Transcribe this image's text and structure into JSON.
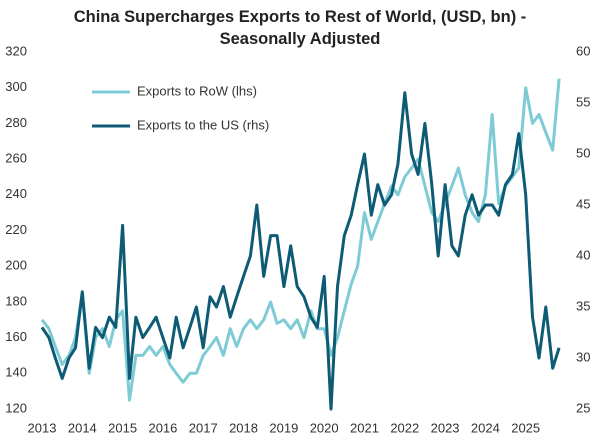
{
  "chart_data": {
    "type": "line",
    "title": "China Supercharges Exports to Rest of World, (USD, bn) - Seasonally Adjusted",
    "x": [
      2013.0,
      2013.17,
      2013.33,
      2013.5,
      2013.67,
      2013.83,
      2014.0,
      2014.17,
      2014.33,
      2014.5,
      2014.67,
      2014.83,
      2015.0,
      2015.17,
      2015.33,
      2015.5,
      2015.67,
      2015.83,
      2016.0,
      2016.17,
      2016.33,
      2016.5,
      2016.67,
      2016.83,
      2017.0,
      2017.17,
      2017.33,
      2017.5,
      2017.67,
      2017.83,
      2018.0,
      2018.17,
      2018.33,
      2018.5,
      2018.67,
      2018.83,
      2019.0,
      2019.17,
      2019.33,
      2019.5,
      2019.67,
      2019.83,
      2020.0,
      2020.17,
      2020.33,
      2020.5,
      2020.67,
      2020.83,
      2021.0,
      2021.17,
      2021.33,
      2021.5,
      2021.67,
      2021.83,
      2022.0,
      2022.17,
      2022.33,
      2022.5,
      2022.67,
      2022.83,
      2023.0,
      2023.17,
      2023.33,
      2023.5,
      2023.67,
      2023.83,
      2024.0,
      2024.17,
      2024.33,
      2024.5,
      2024.67,
      2024.83,
      2025.0,
      2025.17,
      2025.33,
      2025.5,
      2025.67,
      2025.83
    ],
    "series": [
      {
        "name": "Exports to RoW (lhs)",
        "color": "#7ecbd6",
        "axis": "y",
        "values": [
          170,
          165,
          155,
          145,
          150,
          160,
          185,
          140,
          160,
          165,
          155,
          170,
          175,
          125,
          150,
          150,
          155,
          150,
          155,
          145,
          140,
          135,
          140,
          140,
          150,
          155,
          160,
          150,
          165,
          155,
          165,
          170,
          165,
          170,
          180,
          168,
          170,
          165,
          170,
          160,
          175,
          165,
          165,
          150,
          160,
          175,
          190,
          200,
          230,
          215,
          225,
          235,
          245,
          240,
          250,
          255,
          260,
          245,
          230,
          225,
          235,
          245,
          255,
          240,
          230,
          225,
          240,
          285,
          235,
          245,
          250,
          255,
          300,
          280,
          285,
          275,
          265,
          305
        ]
      },
      {
        "name": "Exports to the US (rhs)",
        "color": "#0e5b75",
        "axis": "y2",
        "values": [
          33,
          32,
          30,
          28,
          30,
          31,
          36.5,
          29,
          33,
          32,
          34,
          33,
          43,
          28,
          34,
          32,
          33,
          34,
          32,
          30,
          34,
          31,
          33,
          35,
          31,
          36,
          35,
          37,
          34,
          36,
          38,
          40,
          45,
          38,
          42,
          42,
          37,
          41,
          37,
          36,
          34,
          33,
          38,
          25,
          37,
          42,
          44,
          47,
          50,
          44,
          47,
          45,
          46,
          49,
          56,
          50,
          48,
          53,
          47,
          40,
          47,
          41,
          40,
          44,
          46,
          44,
          45,
          45,
          44,
          47,
          48,
          52,
          46,
          34,
          30,
          35,
          29,
          31
        ]
      }
    ],
    "xlim": [
      2012.95,
      2026.0
    ],
    "xticks": [
      2013,
      2014,
      2015,
      2016,
      2017,
      2018,
      2019,
      2020,
      2021,
      2022,
      2023,
      2024,
      2025
    ],
    "ylim": [
      120,
      320
    ],
    "yticks": [
      120,
      140,
      160,
      180,
      200,
      220,
      240,
      260,
      280,
      300,
      320
    ],
    "y2lim": [
      25,
      60
    ],
    "y2ticks": [
      25,
      30,
      35,
      40,
      45,
      50,
      55,
      60
    ],
    "grid": false
  }
}
